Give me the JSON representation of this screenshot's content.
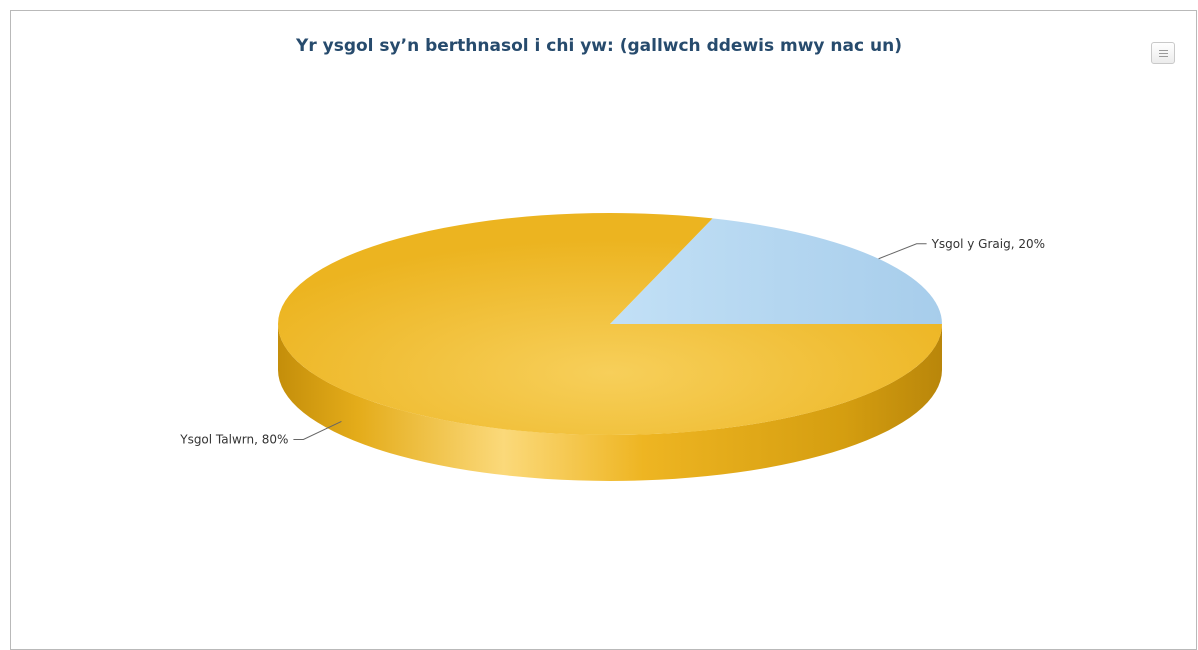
{
  "chart_data": {
    "type": "pie",
    "variant": "3d",
    "title": "Yr ysgol sy’n berthnasol i chi yw: (gallwch ddewis mwy nac un)",
    "slices": [
      {
        "name": "Ysgol y Graig",
        "value": 20,
        "label": "Ysgol y Graig, 20%",
        "color": "#acd2ef"
      },
      {
        "name": "Ysgol Talwrn",
        "value": 80,
        "label": "Ysgol Talwrn, 80%",
        "color": "#f0b41e"
      }
    ],
    "legend": "none",
    "grid": false
  },
  "colors": {
    "title": "#274b6d",
    "border": "#b9b9b9",
    "connector": "#666666"
  },
  "icons": {
    "export": "menu-icon"
  }
}
